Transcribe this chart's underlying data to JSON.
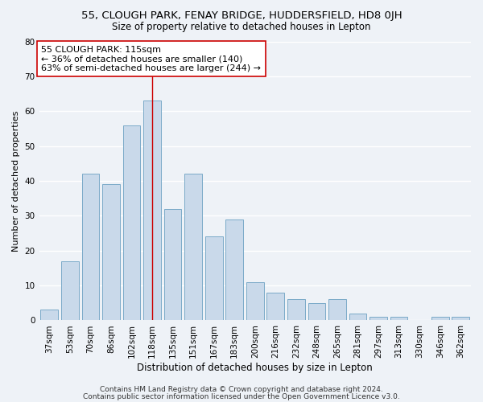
{
  "title1": "55, CLOUGH PARK, FENAY BRIDGE, HUDDERSFIELD, HD8 0JH",
  "title2": "Size of property relative to detached houses in Lepton",
  "xlabel": "Distribution of detached houses by size in Lepton",
  "ylabel": "Number of detached properties",
  "categories": [
    "37sqm",
    "53sqm",
    "70sqm",
    "86sqm",
    "102sqm",
    "118sqm",
    "135sqm",
    "151sqm",
    "167sqm",
    "183sqm",
    "200sqm",
    "216sqm",
    "232sqm",
    "248sqm",
    "265sqm",
    "281sqm",
    "297sqm",
    "313sqm",
    "330sqm",
    "346sqm",
    "362sqm"
  ],
  "values": [
    3,
    17,
    42,
    39,
    56,
    63,
    32,
    42,
    24,
    29,
    11,
    8,
    6,
    5,
    6,
    2,
    1,
    1,
    0,
    1,
    1
  ],
  "bar_color": "#c9d9ea",
  "bar_edge_color": "#7aaac8",
  "background_color": "#eef2f7",
  "grid_color": "#ffffff",
  "vline_x": 5,
  "vline_color": "#cc0000",
  "annotation_text": "55 CLOUGH PARK: 115sqm\n← 36% of detached houses are smaller (140)\n63% of semi-detached houses are larger (244) →",
  "annotation_box_color": "#ffffff",
  "annotation_border_color": "#cc0000",
  "footer1": "Contains HM Land Registry data © Crown copyright and database right 2024.",
  "footer2": "Contains public sector information licensed under the Open Government Licence v3.0.",
  "ylim": [
    0,
    80
  ],
  "title1_fontsize": 9.5,
  "title2_fontsize": 8.5,
  "xlabel_fontsize": 8.5,
  "ylabel_fontsize": 8,
  "tick_fontsize": 7.5,
  "annotation_fontsize": 8,
  "footer_fontsize": 6.5
}
